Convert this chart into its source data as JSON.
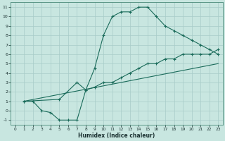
{
  "xlabel": "Humidex (Indice chaleur)",
  "background_color": "#c8e6e0",
  "line_color": "#1a6b5a",
  "grid_color": "#a8ccc8",
  "xlim": [
    -0.5,
    23.5
  ],
  "ylim": [
    -1.5,
    11.5
  ],
  "xticks": [
    0,
    1,
    2,
    3,
    4,
    5,
    6,
    7,
    8,
    9,
    10,
    11,
    12,
    13,
    14,
    15,
    16,
    17,
    18,
    19,
    20,
    21,
    22,
    23
  ],
  "yticks": [
    -1,
    0,
    1,
    2,
    3,
    4,
    5,
    6,
    7,
    8,
    9,
    10,
    11
  ],
  "line1_x": [
    1,
    2,
    3,
    4,
    5,
    6,
    7,
    8,
    9,
    10,
    11,
    12,
    13,
    14,
    15,
    16,
    17,
    18,
    19,
    20,
    21,
    22,
    23
  ],
  "line1_y": [
    1,
    1,
    0,
    -0.2,
    -1,
    -1,
    -1,
    2.2,
    4.5,
    8,
    10,
    10.5,
    10.5,
    11,
    11,
    10,
    9,
    8.5,
    8,
    7.5,
    7,
    6.5,
    6
  ],
  "line2_x": [
    1,
    5,
    7,
    8,
    9,
    10,
    11,
    12,
    13,
    14,
    15,
    16,
    17,
    18,
    19,
    20,
    21,
    22,
    23
  ],
  "line2_y": [
    1,
    1.2,
    3.0,
    2.2,
    2.5,
    3,
    3,
    3.5,
    4,
    4.5,
    5,
    5,
    5.5,
    5.5,
    6,
    6,
    6,
    6,
    6.5
  ],
  "line3_x": [
    1,
    23
  ],
  "line3_y": [
    1,
    5
  ],
  "line1_markers": true,
  "line2_markers": true,
  "line3_markers": false
}
